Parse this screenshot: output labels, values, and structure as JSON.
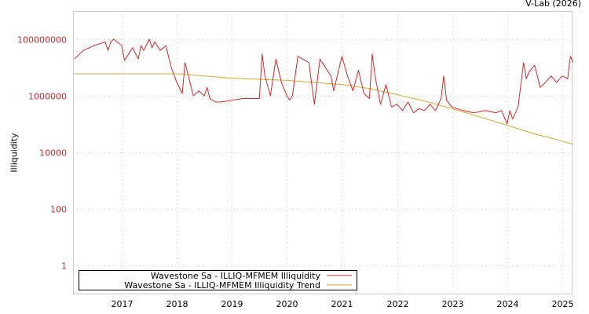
{
  "credit": "V-Lab (2026)",
  "chart_data": {
    "type": "line",
    "title": "",
    "xlabel": "",
    "ylabel": "Illiquidity",
    "yscale": "log",
    "ylim": [
      0.1,
      1000000000
    ],
    "ytick_labels": [
      "100000000",
      "1000000",
      "10000",
      "100",
      "1"
    ],
    "ytick_values": [
      100000000,
      1000000,
      10000,
      100,
      1
    ],
    "xtick_labels": [
      "2017",
      "2018",
      "2019",
      "2020",
      "2021",
      "2022",
      "2023",
      "2024",
      "2025"
    ],
    "xlim": [
      2016.14,
      2025.2
    ],
    "grid": true,
    "legend_position": "lower left",
    "series": [
      {
        "name": "Wavestone Sa - ILLIQ-MFMEM Illiquidity",
        "color": "#d62728",
        "x": [
          2016.14,
          2016.3,
          2016.5,
          2016.7,
          2016.75,
          2016.8,
          2016.85,
          2017.0,
          2017.05,
          2017.2,
          2017.3,
          2017.35,
          2017.4,
          2017.5,
          2017.55,
          2017.6,
          2017.7,
          2017.8,
          2017.9,
          2018.0,
          2018.1,
          2018.15,
          2018.3,
          2018.4,
          2018.5,
          2018.55,
          2018.6,
          2018.7,
          2018.8,
          2019.0,
          2019.2,
          2019.5,
          2019.55,
          2019.6,
          2019.7,
          2019.8,
          2019.9,
          2020.0,
          2020.05,
          2020.1,
          2020.2,
          2020.4,
          2020.5,
          2020.6,
          2020.8,
          2020.85,
          2021.0,
          2021.1,
          2021.2,
          2021.3,
          2021.4,
          2021.5,
          2021.55,
          2021.6,
          2021.7,
          2021.8,
          2021.9,
          2022.0,
          2022.1,
          2022.2,
          2022.3,
          2022.4,
          2022.5,
          2022.6,
          2022.7,
          2022.8,
          2022.85,
          2022.9,
          2023.0,
          2023.2,
          2023.4,
          2023.6,
          2023.8,
          2023.9,
          2024.0,
          2024.05,
          2024.1,
          2024.2,
          2024.3,
          2024.35,
          2024.4,
          2024.5,
          2024.6,
          2024.7,
          2024.8,
          2024.9,
          2025.0,
          2025.1,
          2025.15,
          2025.2
        ],
        "y": [
          20000000,
          40000000,
          60000000,
          80000000,
          40000000,
          80000000,
          100000000,
          60000000,
          18000000,
          50000000,
          20000000,
          60000000,
          40000000,
          100000000,
          50000000,
          80000000,
          40000000,
          60000000,
          10000000,
          3000000,
          1200000,
          15000000,
          1000000,
          1500000,
          1000000,
          2000000,
          800000,
          600000,
          600000,
          700000,
          800000,
          800000,
          30000000,
          5000000,
          1000000,
          20000000,
          3000000,
          1000000,
          700000,
          1000000,
          25000000,
          15000000,
          500000,
          20000000,
          5000000,
          1500000,
          25000000,
          5000000,
          1500000,
          8000000,
          1200000,
          800000,
          30000000,
          5000000,
          500000,
          2500000,
          400000,
          500000,
          300000,
          600000,
          250000,
          350000,
          300000,
          500000,
          300000,
          800000,
          5000000,
          700000,
          400000,
          300000,
          250000,
          300000,
          250000,
          300000,
          100000,
          300000,
          150000,
          400000,
          15000000,
          4000000,
          7000000,
          12000000,
          2000000,
          3000000,
          5000000,
          3000000,
          5000000,
          4000000,
          25000000,
          15000000
        ]
      },
      {
        "name": "Wavestone Sa - ILLIQ-MFMEM Illiquidity Trend",
        "color": "#d4a72c",
        "x": [
          2016.14,
          2018.0,
          2019.0,
          2020.0,
          2021.0,
          2021.5,
          2022.0,
          2022.5,
          2023.0,
          2023.5,
          2024.0,
          2024.5,
          2025.0,
          2025.2
        ],
        "y": [
          6000000,
          6000000,
          4200000,
          3500000,
          2500000,
          1800000,
          1100000,
          650000,
          350000,
          180000,
          90000,
          45000,
          25000,
          19000
        ]
      }
    ]
  }
}
